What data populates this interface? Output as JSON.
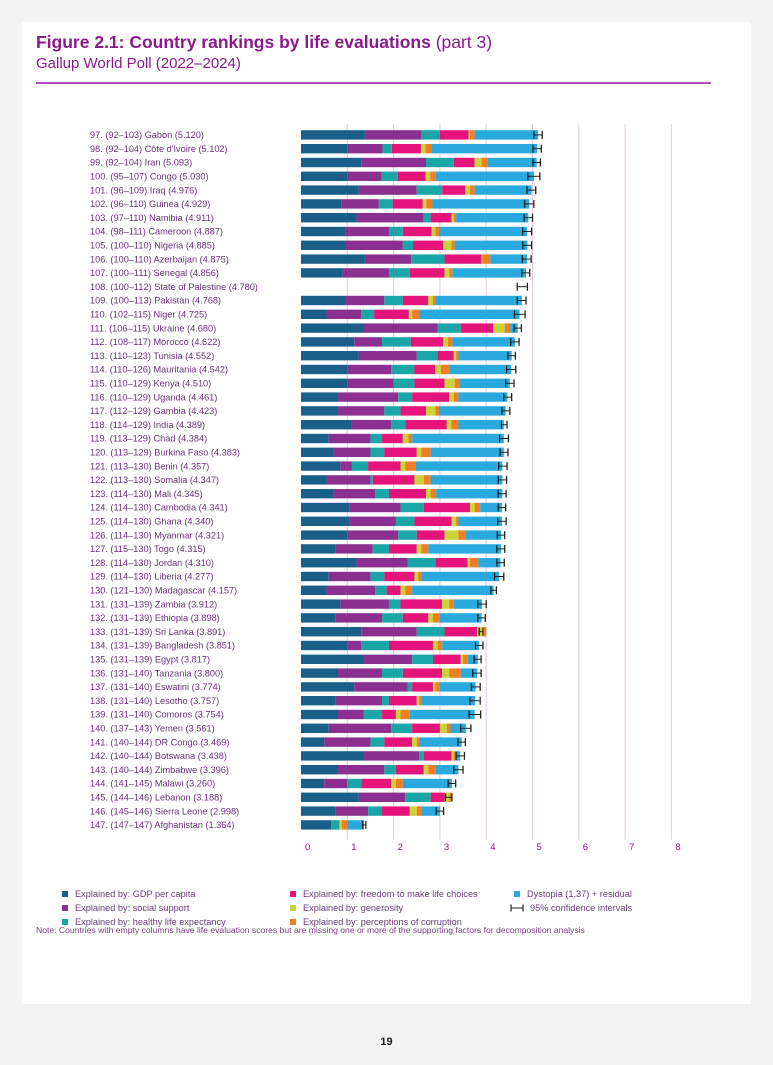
{
  "header": {
    "title_bold": "Figure 2.1: Country rankings by life evaluations",
    "title_light": "(part 3)",
    "subtitle": "Gallup World Poll (2022–2024)"
  },
  "legend": {
    "gdp": "Explained by: GDP per capita",
    "social": "Explained by: social support",
    "health": "Explained by: healthy life expectancy",
    "freedom": "Explained by: freedom to make life choices",
    "generosity": "Explained by: generosity",
    "corruption": "Explained by: perceptions of corruption",
    "dystopia": "Dystopia (1.37) + residual",
    "ci": "95% confidence intervals"
  },
  "colors": {
    "gdp": "#1a5e8a",
    "social": "#8b2f91",
    "health": "#1aa6a6",
    "freedom": "#e4147a",
    "generosity": "#c9d33a",
    "corruption": "#ef7d22",
    "dystopia": "#29a9de",
    "grid": "#e6c7e6"
  },
  "note": "Note: Countries with empty columns have life evaluation scores but are missing one or more of the supporting factors for decomposition analysis",
  "page_number": "19",
  "chart_data": {
    "type": "bar",
    "stacked": true,
    "orientation": "horizontal",
    "xlim": [
      0,
      8
    ],
    "xticks": [
      "0",
      "1",
      "2",
      "3",
      "4",
      "5",
      "6",
      "7",
      "8"
    ],
    "series_order": [
      "gdp",
      "social",
      "health",
      "freedom",
      "generosity",
      "corruption",
      "dystopia"
    ],
    "rows": [
      {
        "label": "97.   (92–103) Gabon (5.120)",
        "score": 5.12,
        "ci": [
          5.03,
          5.21
        ],
        "parts": [
          1.38,
          1.22,
          0.4,
          0.62,
          0.03,
          0.1,
          1.37
        ]
      },
      {
        "label": "98.   (92–104) Côte d'Ivoire (5.102)",
        "score": 5.102,
        "ci": [
          5.01,
          5.19
        ],
        "parts": [
          1.0,
          0.76,
          0.2,
          0.63,
          0.1,
          0.12,
          2.29
        ]
      },
      {
        "label": "99.   (92–104) Iran (5.093)",
        "score": 5.093,
        "ci": [
          5.01,
          5.17
        ],
        "parts": [
          1.3,
          1.4,
          0.6,
          0.45,
          0.15,
          0.12,
          1.07
        ]
      },
      {
        "label": "100.  (95–107) Congo (5.030)",
        "score": 5.03,
        "ci": [
          4.9,
          5.16
        ],
        "parts": [
          1.0,
          0.74,
          0.35,
          0.6,
          0.1,
          0.12,
          2.12
        ]
      },
      {
        "label": "101.  (96–109) Iraq (4.976)",
        "score": 4.976,
        "ci": [
          4.88,
          5.07
        ],
        "parts": [
          1.25,
          1.25,
          0.55,
          0.5,
          0.1,
          0.1,
          1.23
        ]
      },
      {
        "label": "102.  (96–110) Guinea (4.929)",
        "score": 4.929,
        "ci": [
          4.83,
          5.03
        ],
        "parts": [
          0.88,
          0.8,
          0.3,
          0.65,
          0.08,
          0.13,
          2.09
        ]
      },
      {
        "label": "103.  (97–110) Namibia (4.911)",
        "score": 4.911,
        "ci": [
          4.82,
          5.0
        ],
        "parts": [
          1.2,
          1.45,
          0.15,
          0.45,
          0.05,
          0.05,
          1.56
        ]
      },
      {
        "label": "104.  (98–111) Cameroon (4.887)",
        "score": 4.887,
        "ci": [
          4.79,
          4.98
        ],
        "parts": [
          0.95,
          0.95,
          0.3,
          0.62,
          0.08,
          0.08,
          1.9
        ]
      },
      {
        "label": "105.  (100–110) Nigeria (4.885)",
        "score": 4.885,
        "ci": [
          4.79,
          4.98
        ],
        "parts": [
          0.95,
          1.25,
          0.22,
          0.65,
          0.18,
          0.07,
          1.57
        ]
      },
      {
        "label": "106.  (100–110) Azerbaijan (4.875)",
        "score": 4.875,
        "ci": [
          4.78,
          4.97
        ],
        "parts": [
          1.38,
          1.0,
          0.72,
          0.8,
          0.02,
          0.17,
          0.79
        ]
      },
      {
        "label": "107.  (100–111) Senegal (4.856)",
        "score": 4.856,
        "ci": [
          4.77,
          4.94
        ],
        "parts": [
          0.9,
          1.0,
          0.45,
          0.75,
          0.1,
          0.07,
          1.59
        ]
      },
      {
        "label": "108.  (100–112) State of Palestine (4.780)",
        "score": 4.78,
        "ci": [
          4.67,
          4.89
        ],
        "parts": []
      },
      {
        "label": "109.  (100–113) Pakistan (4.768)",
        "score": 4.768,
        "ci": [
          4.67,
          4.86
        ],
        "parts": [
          0.95,
          0.85,
          0.4,
          0.55,
          0.1,
          0.05,
          1.87
        ]
      },
      {
        "label": "110.   (102–115) Niger (4.725)",
        "score": 4.725,
        "ci": [
          4.61,
          4.84
        ],
        "parts": [
          0.55,
          0.75,
          0.28,
          0.75,
          0.07,
          0.15,
          2.17
        ]
      },
      {
        "label": "111.    (106–115) Ukraine (4.680)",
        "score": 4.68,
        "ci": [
          4.6,
          4.76
        ],
        "parts": [
          1.35,
          1.6,
          0.5,
          0.7,
          0.25,
          0.12,
          0.16
        ]
      },
      {
        "label": "112.   (108–117) Morocco (4.622)",
        "score": 4.622,
        "ci": [
          4.53,
          4.71
        ],
        "parts": [
          1.15,
          0.6,
          0.62,
          0.7,
          0.1,
          0.1,
          1.35
        ]
      },
      {
        "label": "113.   (110–123) Tunisia (4.552)",
        "score": 4.552,
        "ci": [
          4.47,
          4.63
        ],
        "parts": [
          1.25,
          1.25,
          0.45,
          0.35,
          0.05,
          0.05,
          1.15
        ]
      },
      {
        "label": "114.   (110–126) Mauritania (4.542)",
        "score": 4.542,
        "ci": [
          4.44,
          4.64
        ],
        "parts": [
          1.0,
          0.95,
          0.5,
          0.45,
          0.12,
          0.18,
          1.34
        ]
      },
      {
        "label": "115.   (110–129) Kenya (4.510)",
        "score": 4.51,
        "ci": [
          4.42,
          4.6
        ],
        "parts": [
          1.0,
          1.0,
          0.45,
          0.65,
          0.22,
          0.1,
          1.09
        ]
      },
      {
        "label": "116.   (110–129) Uganda (4.461)",
        "score": 4.461,
        "ci": [
          4.38,
          4.55
        ],
        "parts": [
          0.8,
          1.3,
          0.3,
          0.8,
          0.1,
          0.1,
          1.06
        ]
      },
      {
        "label": "117.   (112–129) Gambia (4.423)",
        "score": 4.423,
        "ci": [
          4.34,
          4.51
        ],
        "parts": [
          0.8,
          1.0,
          0.35,
          0.55,
          0.2,
          0.08,
          1.44
        ]
      },
      {
        "label": "118.   (114–129) India (4.389)",
        "score": 4.389,
        "ci": [
          4.33,
          4.45
        ],
        "parts": [
          1.1,
          0.85,
          0.3,
          0.9,
          0.1,
          0.15,
          0.98
        ]
      },
      {
        "label": "119.   (113–129) Chad (4.384)",
        "score": 4.384,
        "ci": [
          4.29,
          4.48
        ],
        "parts": [
          0.6,
          0.9,
          0.25,
          0.45,
          0.12,
          0.08,
          1.98
        ]
      },
      {
        "label": "120.  (113–129) Burkina Faso (4.383)",
        "score": 4.383,
        "ci": [
          4.3,
          4.47
        ],
        "parts": [
          0.7,
          0.8,
          0.3,
          0.7,
          0.1,
          0.2,
          1.58
        ]
      },
      {
        "label": "121.   (113–130) Benin (4.357)",
        "score": 4.357,
        "ci": [
          4.27,
          4.45
        ],
        "parts": [
          0.85,
          0.25,
          0.35,
          0.7,
          0.1,
          0.22,
          1.88
        ]
      },
      {
        "label": "122.  (113–130) Somalia (4.347)",
        "score": 4.347,
        "ci": [
          4.26,
          4.44
        ],
        "parts": [
          0.55,
          0.95,
          0.05,
          0.9,
          0.2,
          0.15,
          1.55
        ]
      },
      {
        "label": "123.  (114–130) Mali (4.345)",
        "score": 4.345,
        "ci": [
          4.26,
          4.43
        ],
        "parts": [
          0.7,
          0.9,
          0.3,
          0.8,
          0.1,
          0.12,
          1.43
        ]
      },
      {
        "label": "124.  (114–130) Cambodia (4.341)",
        "score": 4.341,
        "ci": [
          4.26,
          4.42
        ],
        "parts": [
          1.05,
          1.1,
          0.5,
          1.0,
          0.1,
          0.12,
          0.47
        ]
      },
      {
        "label": "125.  (114–130) Ghana (4.340)",
        "score": 4.34,
        "ci": [
          4.25,
          4.43
        ],
        "parts": [
          1.05,
          1.0,
          0.4,
          0.8,
          0.1,
          0.05,
          0.94
        ]
      },
      {
        "label": "126.  (114–130) Myanmar (4.321)",
        "score": 4.321,
        "ci": [
          4.24,
          4.4
        ],
        "parts": [
          1.0,
          1.1,
          0.4,
          0.6,
          0.3,
          0.15,
          0.77
        ]
      },
      {
        "label": "127.   (115–130) Togo (4.315)",
        "score": 4.315,
        "ci": [
          4.23,
          4.4
        ],
        "parts": [
          0.75,
          0.8,
          0.35,
          0.6,
          0.1,
          0.15,
          1.57
        ]
      },
      {
        "label": "128.  (114–130) Jordan (4.310)",
        "score": 4.31,
        "ci": [
          4.23,
          4.39
        ],
        "parts": [
          1.2,
          1.1,
          0.6,
          0.7,
          0.05,
          0.18,
          0.48
        ]
      },
      {
        "label": "129.   (114–130) Liberia (4.277)",
        "score": 4.277,
        "ci": [
          4.18,
          4.38
        ],
        "parts": [
          0.6,
          0.9,
          0.3,
          0.65,
          0.08,
          0.07,
          1.68
        ]
      },
      {
        "label": "130.  (121–130) Madagascar (4.157)",
        "score": 4.157,
        "ci": [
          4.1,
          4.22
        ],
        "parts": [
          0.55,
          1.05,
          0.25,
          0.3,
          0.1,
          0.15,
          1.76
        ]
      },
      {
        "label": "131.    (131–139) Zambia (3.912)",
        "score": 3.912,
        "ci": [
          3.82,
          4.0
        ],
        "parts": [
          0.85,
          1.05,
          0.25,
          0.9,
          0.15,
          0.1,
          0.61
        ]
      },
      {
        "label": "132.   (131–139) Ethiopia (3.898)",
        "score": 3.898,
        "ci": [
          3.82,
          3.98
        ],
        "parts": [
          0.75,
          1.0,
          0.45,
          0.55,
          0.1,
          0.15,
          0.9
        ]
      },
      {
        "label": "133.   (131–139) Sri Lanka (3.891)",
        "score": 3.891,
        "ci": [
          3.85,
          3.93
        ],
        "parts": [
          1.3,
          1.2,
          0.6,
          0.7,
          0.15,
          0.05,
          -0.11
        ]
      },
      {
        "label": "134.   (131–139) Bangladesh (3.851)",
        "score": 3.851,
        "ci": [
          3.77,
          3.93
        ],
        "parts": [
          1.0,
          0.3,
          0.6,
          0.95,
          0.1,
          0.1,
          0.8
        ]
      },
      {
        "label": "135.   (131–139) Egypt (3.817)",
        "score": 3.817,
        "ci": [
          3.74,
          3.89
        ],
        "parts": [
          1.35,
          1.05,
          0.45,
          0.6,
          0.05,
          0.1,
          0.22
        ]
      },
      {
        "label": "136.   (131–140) Tanzania (3.800)",
        "score": 3.8,
        "ci": [
          3.71,
          3.89
        ],
        "parts": [
          0.8,
          0.95,
          0.45,
          0.85,
          0.15,
          0.25,
          0.35
        ]
      },
      {
        "label": "137.    (131–140) Eswatini (3.774)",
        "score": 3.774,
        "ci": [
          3.68,
          3.87
        ],
        "parts": [
          1.15,
          1.15,
          0.1,
          0.45,
          0.05,
          0.1,
          0.77
        ]
      },
      {
        "label": "138.   (131–140) Lesotho (3.757)",
        "score": 3.757,
        "ci": [
          3.65,
          3.87
        ],
        "parts": [
          0.75,
          1.0,
          0.15,
          0.6,
          0.05,
          0.05,
          1.16
        ]
      },
      {
        "label": "139.   (131–140) Comoros (3.754)",
        "score": 3.754,
        "ci": [
          3.63,
          3.88
        ],
        "parts": [
          0.8,
          0.55,
          0.4,
          0.3,
          0.1,
          0.2,
          1.4
        ]
      },
      {
        "label": "140.   (137–143) Yemen (3.561)",
        "score": 3.561,
        "ci": [
          3.45,
          3.67
        ],
        "parts": [
          0.6,
          1.35,
          0.45,
          0.6,
          0.15,
          0.08,
          0.33
        ]
      },
      {
        "label": "141.    (140–144) DR Congo (3.469)",
        "score": 3.469,
        "ci": [
          3.39,
          3.55
        ],
        "parts": [
          0.5,
          1.0,
          0.3,
          0.6,
          0.1,
          0.05,
          0.92
        ]
      },
      {
        "label": "142.   (140–144) Botswana (3.438)",
        "score": 3.438,
        "ci": [
          3.35,
          3.53
        ],
        "parts": [
          1.35,
          1.2,
          0.1,
          0.6,
          0.05,
          0.05,
          0.09
        ]
      },
      {
        "label": "143.   (140–144) Zimbabwe (3.396)",
        "score": 3.396,
        "ci": [
          3.3,
          3.5
        ],
        "parts": [
          0.8,
          1.0,
          0.25,
          0.6,
          0.1,
          0.15,
          0.5
        ]
      },
      {
        "label": "144.   (141–145) Malawi (3.260)",
        "score": 3.26,
        "ci": [
          3.18,
          3.34
        ],
        "parts": [
          0.5,
          0.5,
          0.3,
          0.65,
          0.1,
          0.15,
          1.06
        ]
      },
      {
        "label": "145.   (144–146) Lebanon (3.188)",
        "score": 3.188,
        "ci": [
          3.12,
          3.26
        ],
        "parts": [
          1.25,
          1.0,
          0.55,
          0.3,
          0.1,
          0.05,
          -0.06
        ]
      },
      {
        "label": "146.   (145–146) Sierra Leone (2.998)",
        "score": 2.998,
        "ci": [
          2.92,
          3.08
        ],
        "parts": [
          0.75,
          0.7,
          0.3,
          0.6,
          0.15,
          0.1,
          0.4
        ]
      },
      {
        "label": "147.   (147–147) Afghanistan (1.364)",
        "score": 1.364,
        "ci": [
          1.33,
          1.4
        ],
        "parts": [
          0.65,
          0.0,
          0.18,
          0.0,
          0.05,
          0.12,
          0.36
        ]
      }
    ]
  }
}
